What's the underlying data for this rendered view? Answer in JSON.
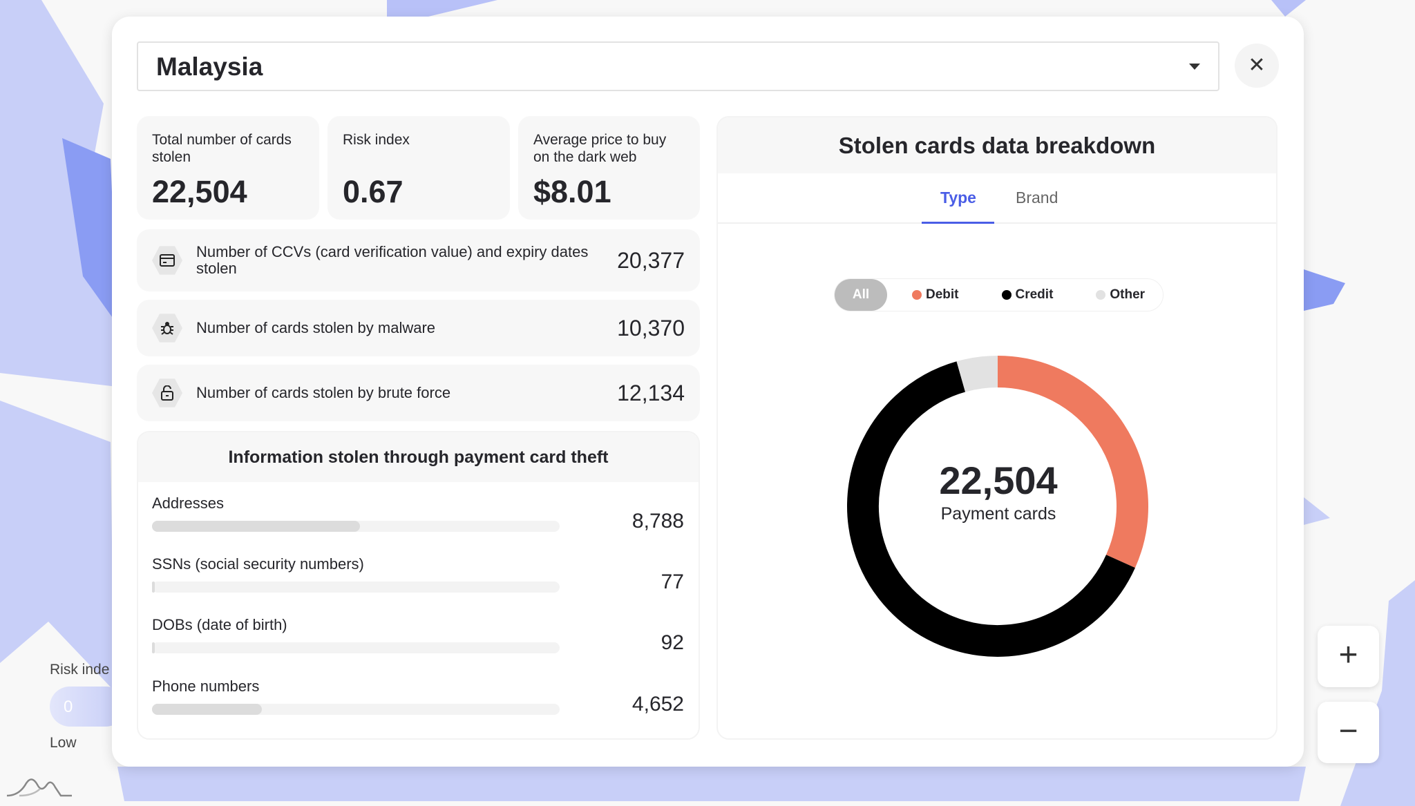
{
  "map": {
    "legend_title": "Risk inde",
    "legend_value": "0",
    "legend_low": "Low",
    "colors": {
      "light": "#c8cff8",
      "mid": "#a3affa",
      "dark": "#8a9cf3"
    }
  },
  "header": {
    "country": "Malaysia",
    "close_icon": "close-icon"
  },
  "stats": [
    {
      "label": "Total number of cards stolen",
      "value": "22,504"
    },
    {
      "label": "Risk index",
      "value": "0.67"
    },
    {
      "label": "Average price to buy on the dark web",
      "value": "$8.01"
    }
  ],
  "rows": [
    {
      "icon": "credit-card-icon",
      "label": "Number of CCVs (card verification value) and expiry dates stolen",
      "value": "20,377"
    },
    {
      "icon": "bug-icon",
      "label": "Number of cards stolen by malware",
      "value": "10,370"
    },
    {
      "icon": "unlock-icon",
      "label": "Number of cards stolen by brute force",
      "value": "12,134"
    }
  ],
  "info": {
    "title": "Information stolen through payment card theft",
    "items": [
      {
        "label": "Addresses",
        "value": "8,788",
        "fill": 0.51
      },
      {
        "label": "SSNs (social security numbers)",
        "value": "77",
        "fill": 0.005
      },
      {
        "label": "DOBs (date of birth)",
        "value": "92",
        "fill": 0.005
      },
      {
        "label": "Phone numbers",
        "value": "4,652",
        "fill": 0.27
      }
    ]
  },
  "breakdown": {
    "title": "Stolen cards data breakdown",
    "tabs": [
      "Type",
      "Brand"
    ],
    "active_tab": "Type",
    "filters": [
      "All",
      "Debit",
      "Credit",
      "Other"
    ],
    "active_filter": "All",
    "total": "22,504",
    "total_label": "Payment cards"
  },
  "chart_data": {
    "type": "pie",
    "donut": true,
    "categories": [
      "Debit",
      "Credit",
      "Other"
    ],
    "values_percent": [
      31.7,
      63.9,
      4.4
    ],
    "colors": [
      "#ef7a5f",
      "#000000",
      "#e2e2e2"
    ],
    "center_text": "22,504",
    "center_label": "Payment cards"
  },
  "zoom": {
    "in": "+",
    "out": "−"
  }
}
